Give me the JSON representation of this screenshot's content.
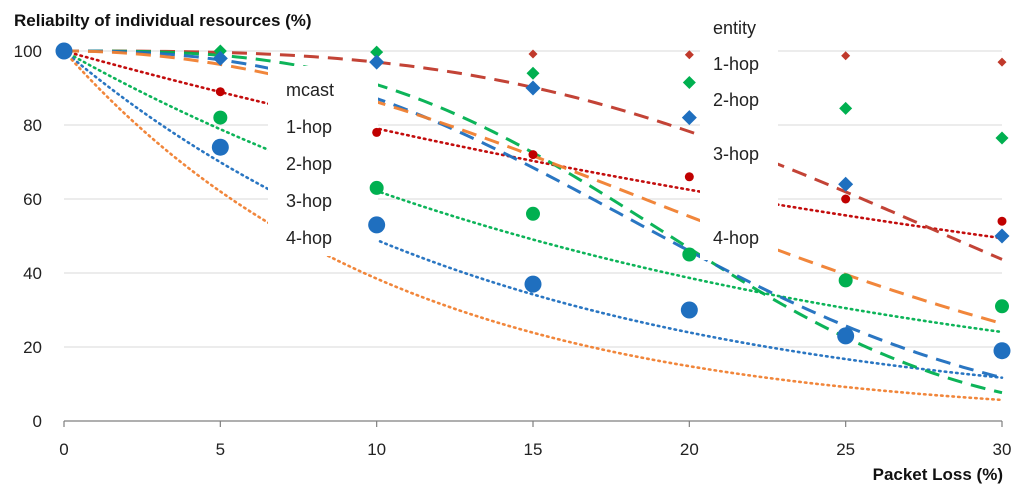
{
  "chart_data": {
    "type": "scatter",
    "title": "",
    "ylabel": "Reliabilty of individual resources (%)",
    "xlabel": "Packet Loss (%)",
    "xlim": [
      0,
      30
    ],
    "ylim": [
      0,
      100
    ],
    "xticks": [
      0,
      5,
      10,
      15,
      20,
      25,
      30
    ],
    "yticks": [
      0,
      20,
      40,
      60,
      80,
      100
    ],
    "grid": "horizontal",
    "x": [
      0,
      5,
      10,
      15,
      20,
      25,
      30
    ],
    "legend_groups": [
      {
        "title": "mcast",
        "entries": [
          "1-hop",
          "2-hop",
          "3-hop",
          "4-hop"
        ],
        "placement": "center-left"
      },
      {
        "title": "entity",
        "entries": [
          "1-hop",
          "2-hop",
          "3-hop",
          "4-hop"
        ],
        "placement": "right"
      }
    ],
    "series": [
      {
        "name": "mcast 1-hop",
        "group": "mcast",
        "marker": "circle-small",
        "line": "dotted",
        "color": "#c00000",
        "values": [
          100,
          89,
          78,
          72,
          66,
          60,
          54
        ]
      },
      {
        "name": "mcast 2-hop",
        "group": "mcast",
        "marker": "circle-medium",
        "line": "dotted",
        "color": "#00b050",
        "values": [
          100,
          82,
          63,
          56,
          45,
          38,
          31
        ]
      },
      {
        "name": "mcast 3-hop",
        "group": "mcast",
        "marker": "circle-large",
        "line": "dotted",
        "color": "#1f6fbf",
        "values": [
          100,
          74,
          53,
          37,
          30,
          23,
          19
        ]
      },
      {
        "name": "mcast 4-hop",
        "group": "mcast",
        "marker": "none",
        "line": "dotted",
        "color": "#f08030",
        "values": []
      },
      {
        "name": "entity 1-hop",
        "group": "entity",
        "marker": "diamond-small",
        "line": "dashed",
        "color": "#c0392b",
        "values": [
          100,
          99.8,
          99.5,
          99.2,
          99,
          98.7,
          97
        ]
      },
      {
        "name": "entity 2-hop",
        "group": "entity",
        "marker": "diamond-medium",
        "line": "dashed",
        "color": "#00b050",
        "values": [
          100,
          100,
          99.7,
          94,
          91.5,
          84.5,
          76.5
        ]
      },
      {
        "name": "entity 3-hop",
        "group": "entity",
        "marker": "diamond-large",
        "line": "dashed",
        "color": "#1f6fbf",
        "values": [
          100,
          98,
          97,
          90,
          82,
          64,
          50
        ]
      },
      {
        "name": "entity 4-hop",
        "group": "entity",
        "marker": "none",
        "line": "dashed",
        "color": "#f08030",
        "values": []
      }
    ],
    "trendlines": [
      {
        "series": "mcast 1-hop",
        "type": "exponential",
        "rate": 0.0235
      },
      {
        "series": "mcast 2-hop",
        "type": "exponential",
        "rate": 0.0475
      },
      {
        "series": "mcast 3-hop",
        "type": "exponential",
        "rate": 0.0715
      },
      {
        "series": "mcast 4-hop",
        "type": "exponential",
        "rate": 0.0955
      },
      {
        "series": "entity 1-hop",
        "type": "exponential",
        "power": 3,
        "scale": 32600
      },
      {
        "series": "entity 2-hop",
        "type": "exponential",
        "power": 3,
        "scale": 10500
      },
      {
        "series": "entity 3-hop",
        "type": "exponential",
        "power": 2.5,
        "scale": 2300
      },
      {
        "series": "entity 4-hop",
        "type": "exponential",
        "power": 2,
        "scale": 675
      }
    ]
  }
}
